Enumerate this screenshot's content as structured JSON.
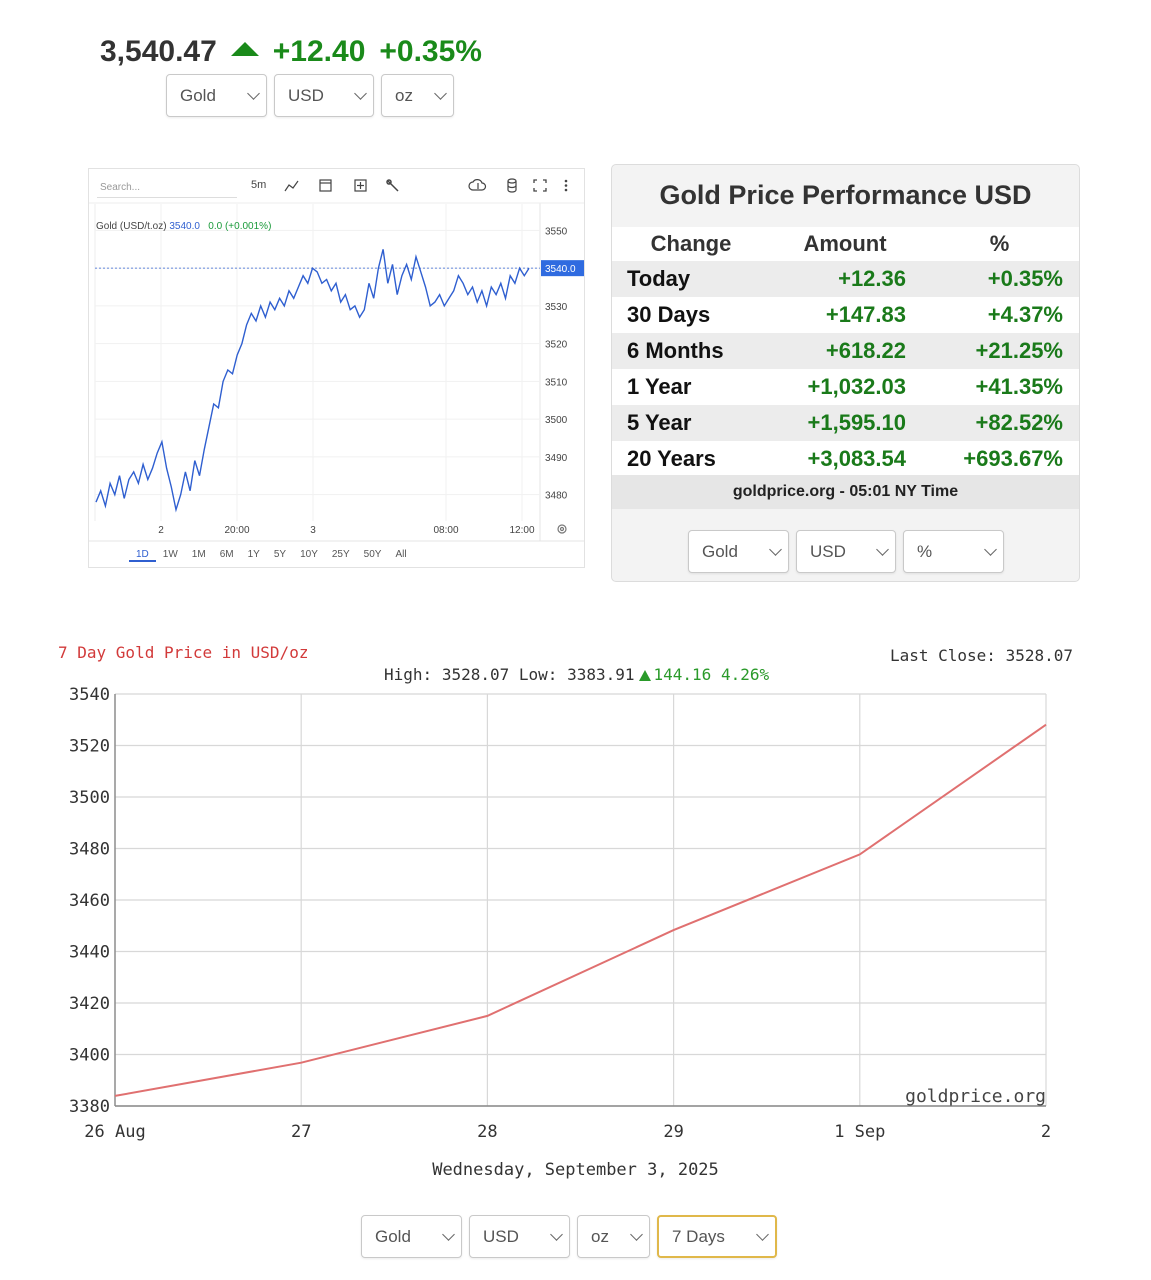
{
  "header": {
    "price": "3,540.47",
    "change": "+12.40",
    "change_pct": "+0.35%",
    "direction_icon": "up-triangle-icon",
    "up_color": "#1a8a1a"
  },
  "top_selects": {
    "metal": "Gold",
    "currency": "USD",
    "unit": "oz"
  },
  "intraday_widget": {
    "search_placeholder": "Search...",
    "interval": "5m",
    "toolbar_icons": [
      "line-chart-icon",
      "calendar-icon",
      "add-indicator-icon",
      "settings-wrench-icon",
      "cloud-download-icon",
      "database-icon",
      "fullscreen-icon",
      "more-menu-icon"
    ],
    "legend_name": "Gold (USD/t.oz)",
    "legend_value": "3540.0",
    "legend_change": "0.0 (+0.001%)",
    "last_price_label": "3540.0",
    "ranges": [
      "1D",
      "1W",
      "1M",
      "6M",
      "1Y",
      "5Y",
      "10Y",
      "25Y",
      "50Y",
      "All"
    ],
    "active_range": "1D",
    "line_color": "#2f5fd0"
  },
  "intraday_chart": {
    "type": "line",
    "ylim": [
      3473,
      3557
    ],
    "y_ticks": [
      3550,
      3540,
      3530,
      3520,
      3510,
      3500,
      3490,
      3480
    ],
    "x_tick_labels": [
      "2",
      "20:00",
      "3",
      "08:00",
      "12:00"
    ],
    "current": 3540.0,
    "values": [
      3478,
      3481,
      3477,
      3483,
      3480,
      3485,
      3479,
      3484,
      3486,
      3483,
      3488,
      3484,
      3487,
      3491,
      3494,
      3487,
      3482,
      3476,
      3480,
      3486,
      3481,
      3489,
      3485,
      3492,
      3498,
      3504,
      3503,
      3510,
      3513,
      3512,
      3517,
      3520,
      3525,
      3528,
      3526,
      3530,
      3527,
      3531,
      3529,
      3532,
      3530,
      3534,
      3532,
      3535,
      3538,
      3536,
      3540,
      3539,
      3536,
      3537,
      3534,
      3536,
      3531,
      3533,
      3529,
      3530,
      3527,
      3529,
      3536,
      3532,
      3540,
      3545,
      3536,
      3541,
      3533,
      3538,
      3541,
      3537,
      3543,
      3539,
      3535,
      3530,
      3531,
      3533,
      3530,
      3532,
      3534,
      3538,
      3536,
      3533,
      3535,
      3531,
      3534,
      3530,
      3535,
      3533,
      3536,
      3532,
      3538,
      3536,
      3540,
      3538,
      3540
    ]
  },
  "performance": {
    "title": "Gold Price Performance USD",
    "headers": [
      "Change",
      "Amount",
      "%"
    ],
    "rows": [
      {
        "label": "Today",
        "amount": "+12.36",
        "pct": "+0.35%"
      },
      {
        "label": "30 Days",
        "amount": "+147.83",
        "pct": "+4.37%"
      },
      {
        "label": "6 Months",
        "amount": "+618.22",
        "pct": "+21.25%"
      },
      {
        "label": "1 Year",
        "amount": "+1,032.03",
        "pct": "+41.35%"
      },
      {
        "label": "5 Year",
        "amount": "+1,595.10",
        "pct": "+82.52%"
      },
      {
        "label": "20 Years",
        "amount": "+3,083.54",
        "pct": "+693.67%"
      }
    ],
    "source": "goldprice.org - 05:01 NY Time",
    "selects": {
      "metal": "Gold",
      "currency": "USD",
      "mode": "%"
    }
  },
  "week_chart": {
    "title": "7 Day Gold Price in USD/oz",
    "last_close_label": "Last Close:",
    "last_close_value": "3528.07",
    "high_label": "High:",
    "high_value": "3528.07",
    "low_label": "Low:",
    "low_value": "3383.91",
    "change_value": "144.16",
    "change_pct": "4.26%",
    "watermark": "goldprice.org",
    "date_text": "Wednesday, September 3, 2025",
    "line_color": "#e07070"
  },
  "chart_data": {
    "type": "line",
    "categories": [
      "26 Aug",
      "27",
      "28",
      "29",
      "1 Sep",
      "2"
    ],
    "series": [
      {
        "values": [
          3383.91,
          3396.8,
          3415.0,
          3448.3,
          3477.7,
          3528.07
        ]
      }
    ],
    "ylim": [
      3380,
      3540
    ],
    "y_ticks": [
      3540,
      3520,
      3500,
      3480,
      3460,
      3440,
      3420,
      3400,
      3380
    ],
    "grid": true
  },
  "bottom_selects": {
    "metal": "Gold",
    "currency": "USD",
    "unit": "oz",
    "period": "7 Days"
  }
}
